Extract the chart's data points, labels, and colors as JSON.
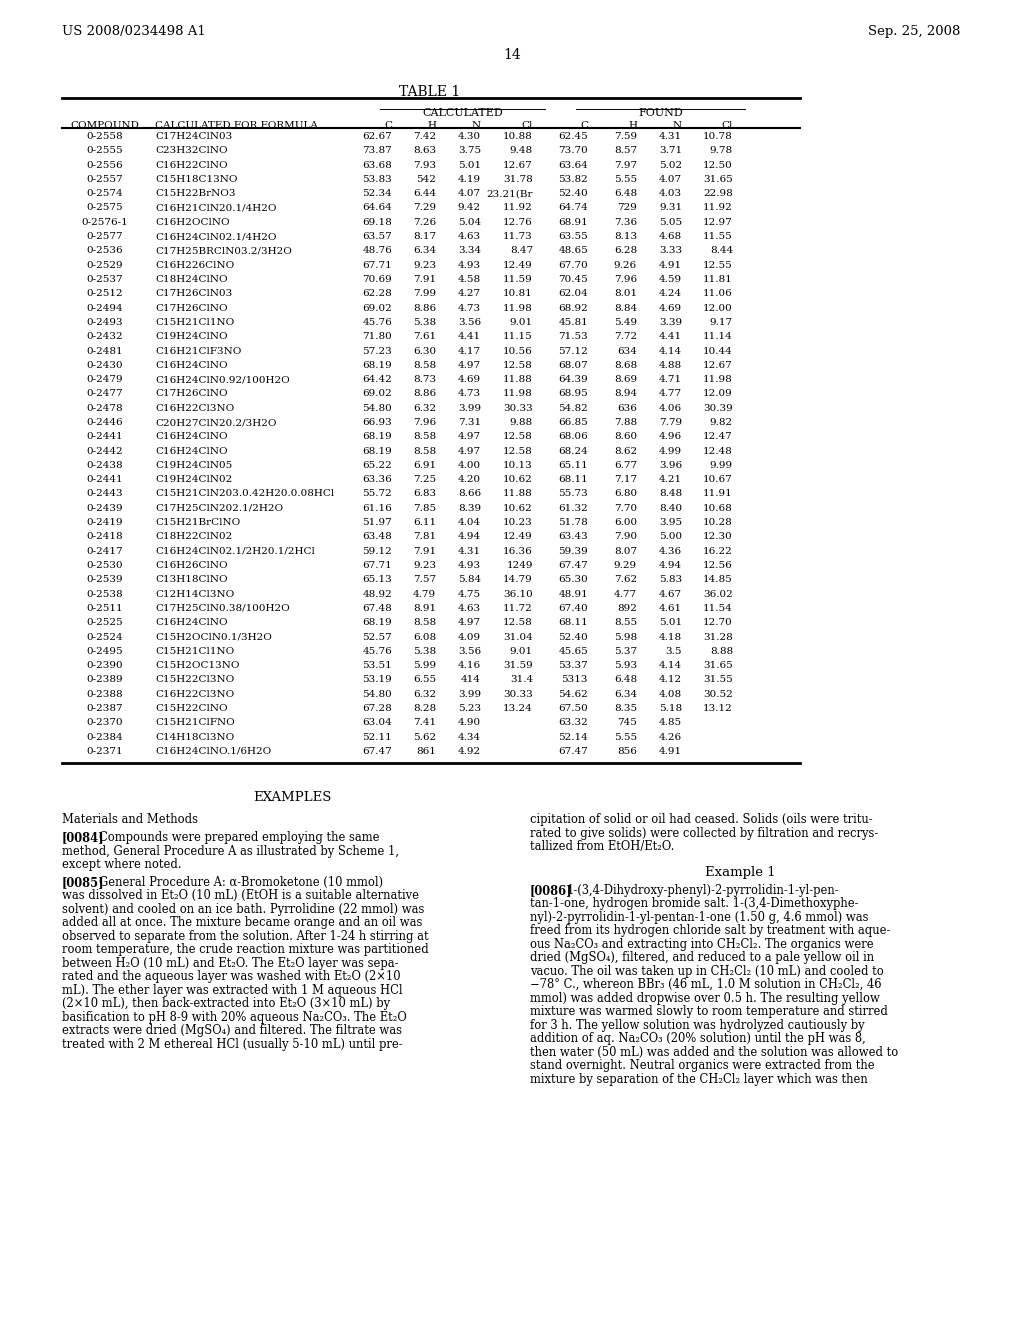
{
  "header_left": "US 2008/0234498 A1",
  "header_right": "Sep. 25, 2008",
  "page_number": "14",
  "table_title": "TABLE 1",
  "calc_header": "CALCULATED",
  "found_header": "FOUND",
  "table_data": [
    [
      "0-2558",
      "C17H24ClN03",
      "62.67",
      "7.42",
      "4.30",
      "10.88",
      "62.45",
      "7.59",
      "4.31",
      "10.78"
    ],
    [
      "0-2555",
      "C23H32ClNO",
      "73.87",
      "8.63",
      "3.75",
      "9.48",
      "73.70",
      "8.57",
      "3.71",
      "9.78"
    ],
    [
      "0-2556",
      "C16H22ClNO",
      "63.68",
      "7.93",
      "5.01",
      "12.67",
      "63.64",
      "7.97",
      "5.02",
      "12.50"
    ],
    [
      "0-2557",
      "C15H18C13NO",
      "53.83",
      "542",
      "4.19",
      "31.78",
      "53.82",
      "5.55",
      "4.07",
      "31.65"
    ],
    [
      "0-2574",
      "C15H22BrNO3",
      "52.34",
      "6.44",
      "4.07",
      "23.21(Br",
      "52.40",
      "6.48",
      "4.03",
      "22.98"
    ],
    [
      "0-2575",
      "C16H21ClN20.1/4H2O",
      "64.64",
      "7.29",
      "9.42",
      "11.92",
      "64.74",
      "729",
      "9.31",
      "11.92"
    ],
    [
      "0-2576-1",
      "C16H2OClNO",
      "69.18",
      "7.26",
      "5.04",
      "12.76",
      "68.91",
      "7.36",
      "5.05",
      "12.97"
    ],
    [
      "0-2577",
      "C16H24ClN02.1/4H2O",
      "63.57",
      "8.17",
      "4.63",
      "11.73",
      "63.55",
      "8.13",
      "4.68",
      "11.55"
    ],
    [
      "0-2536",
      "C17H25BRClN03.2/3H2O",
      "48.76",
      "6.34",
      "3.34",
      "8.47",
      "48.65",
      "6.28",
      "3.33",
      "8.44"
    ],
    [
      "0-2529",
      "C16H226ClNO",
      "67.71",
      "9.23",
      "4.93",
      "12.49",
      "67.70",
      "9.26",
      "4.91",
      "12.55"
    ],
    [
      "0-2537",
      "C18H24ClNO",
      "70.69",
      "7.91",
      "4.58",
      "11.59",
      "70.45",
      "7.96",
      "4.59",
      "11.81"
    ],
    [
      "0-2512",
      "C17H26ClN03",
      "62.28",
      "7.99",
      "4.27",
      "10.81",
      "62.04",
      "8.01",
      "4.24",
      "11.06"
    ],
    [
      "0-2494",
      "C17H26ClNO",
      "69.02",
      "8.86",
      "4.73",
      "11.98",
      "68.92",
      "8.84",
      "4.69",
      "12.00"
    ],
    [
      "0-2493",
      "C15H21Cl1NO",
      "45.76",
      "5.38",
      "3.56",
      "9.01",
      "45.81",
      "5.49",
      "3.39",
      "9.17"
    ],
    [
      "0-2432",
      "C19H24ClNO",
      "71.80",
      "7.61",
      "4.41",
      "11.15",
      "71.53",
      "7.72",
      "4.41",
      "11.14"
    ],
    [
      "0-2481",
      "C16H21ClF3NO",
      "57.23",
      "6.30",
      "4.17",
      "10.56",
      "57.12",
      "634",
      "4.14",
      "10.44"
    ],
    [
      "0-2430",
      "C16H24ClNO",
      "68.19",
      "8.58",
      "4.97",
      "12.58",
      "68.07",
      "8.68",
      "4.88",
      "12.67"
    ],
    [
      "0-2479",
      "C16H24ClN0.92/100H2O",
      "64.42",
      "8.73",
      "4.69",
      "11.88",
      "64.39",
      "8.69",
      "4.71",
      "11.98"
    ],
    [
      "0-2477",
      "C17H26ClNO",
      "69.02",
      "8.86",
      "4.73",
      "11.98",
      "68.95",
      "8.94",
      "4.77",
      "12.09"
    ],
    [
      "0-2478",
      "C16H22Cl3NO",
      "54.80",
      "6.32",
      "3.99",
      "30.33",
      "54.82",
      "636",
      "4.06",
      "30.39"
    ],
    [
      "0-2446",
      "C20H27ClN20.2/3H2O",
      "66.93",
      "7.96",
      "7.31",
      "9.88",
      "66.85",
      "7.88",
      "7.79",
      "9.82"
    ],
    [
      "0-2441",
      "C16H24ClNO",
      "68.19",
      "8.58",
      "4.97",
      "12.58",
      "68.06",
      "8.60",
      "4.96",
      "12.47"
    ],
    [
      "0-2442",
      "C16H24ClNO",
      "68.19",
      "8.58",
      "4.97",
      "12.58",
      "68.24",
      "8.62",
      "4.99",
      "12.48"
    ],
    [
      "0-2438",
      "C19H24ClN05",
      "65.22",
      "6.91",
      "4.00",
      "10.13",
      "65.11",
      "6.77",
      "3.96",
      "9.99"
    ],
    [
      "0-2441",
      "C19H24ClN02",
      "63.36",
      "7.25",
      "4.20",
      "10.62",
      "68.11",
      "7.17",
      "4.21",
      "10.67"
    ],
    [
      "0-2443",
      "C15H21ClN203.0.42H20.0.08HCl",
      "55.72",
      "6.83",
      "8.66",
      "11.88",
      "55.73",
      "6.80",
      "8.48",
      "11.91"
    ],
    [
      "0-2439",
      "C17H25ClN202.1/2H2O",
      "61.16",
      "7.85",
      "8.39",
      "10.62",
      "61.32",
      "7.70",
      "8.40",
      "10.68"
    ],
    [
      "0-2419",
      "C15H21BrClNO",
      "51.97",
      "6.11",
      "4.04",
      "10.23",
      "51.78",
      "6.00",
      "3.95",
      "10.28"
    ],
    [
      "0-2418",
      "C18H22ClN02",
      "63.48",
      "7.81",
      "4.94",
      "12.49",
      "63.43",
      "7.90",
      "5.00",
      "12.30"
    ],
    [
      "0-2417",
      "C16H24ClN02.1/2H20.1/2HCl",
      "59.12",
      "7.91",
      "4.31",
      "16.36",
      "59.39",
      "8.07",
      "4.36",
      "16.22"
    ],
    [
      "0-2530",
      "C16H26ClNO",
      "67.71",
      "9.23",
      "4.93",
      "1249",
      "67.47",
      "9.29",
      "4.94",
      "12.56"
    ],
    [
      "0-2539",
      "C13H18ClNO",
      "65.13",
      "7.57",
      "5.84",
      "14.79",
      "65.30",
      "7.62",
      "5.83",
      "14.85"
    ],
    [
      "0-2538",
      "C12H14Cl3NO",
      "48.92",
      "4.79",
      "4.75",
      "36.10",
      "48.91",
      "4.77",
      "4.67",
      "36.02"
    ],
    [
      "0-2511",
      "C17H25ClN0.38/100H2O",
      "67.48",
      "8.91",
      "4.63",
      "11.72",
      "67.40",
      "892",
      "4.61",
      "11.54"
    ],
    [
      "0-2525",
      "C16H24ClNO",
      "68.19",
      "8.58",
      "4.97",
      "12.58",
      "68.11",
      "8.55",
      "5.01",
      "12.70"
    ],
    [
      "0-2524",
      "C15H2OClN0.1/3H2O",
      "52.57",
      "6.08",
      "4.09",
      "31.04",
      "52.40",
      "5.98",
      "4.18",
      "31.28"
    ],
    [
      "0-2495",
      "C15H21Cl1NO",
      "45.76",
      "5.38",
      "3.56",
      "9.01",
      "45.65",
      "5.37",
      "3.5",
      "8.88"
    ],
    [
      "0-2390",
      "C15H2OC13NO",
      "53.51",
      "5.99",
      "4.16",
      "31.59",
      "53.37",
      "5.93",
      "4.14",
      "31.65"
    ],
    [
      "0-2389",
      "C15H22Cl3NO",
      "53.19",
      "6.55",
      "414",
      "31.4",
      "5313",
      "6.48",
      "4.12",
      "31.55"
    ],
    [
      "0-2388",
      "C16H22Cl3NO",
      "54.80",
      "6.32",
      "3.99",
      "30.33",
      "54.62",
      "6.34",
      "4.08",
      "30.52"
    ],
    [
      "0-2387",
      "C15H22ClNO",
      "67.28",
      "8.28",
      "5.23",
      "13.24",
      "67.50",
      "8.35",
      "5.18",
      "13.12"
    ],
    [
      "0-2370",
      "C15H21ClFNO",
      "63.04",
      "7.41",
      "4.90",
      "",
      "63.32",
      "745",
      "4.85",
      ""
    ],
    [
      "0-2384",
      "C14H18Cl3NO",
      "52.11",
      "5.62",
      "4.34",
      "",
      "52.14",
      "5.55",
      "4.26",
      ""
    ],
    [
      "0-2371",
      "C16H24ClNO.1/6H2O",
      "67.47",
      "861",
      "4.92",
      "",
      "67.47",
      "856",
      "4.91",
      ""
    ]
  ],
  "left_col_paragraphs": [
    {
      "label": "EXAMPLES",
      "style": "center_heading",
      "lines": [
        "EXAMPLES"
      ]
    },
    {
      "label": "Materials",
      "style": "left_heading",
      "lines": [
        "Materials and Methods"
      ]
    },
    {
      "label": "0084",
      "style": "para",
      "bold_tag": "[0084]",
      "lines": [
        "Compounds were prepared employing the same",
        "method, General Procedure A as illustrated by Scheme 1,",
        "except where noted."
      ]
    },
    {
      "label": "0085",
      "style": "para",
      "bold_tag": "[0085]",
      "lines": [
        "General Procedure A: α-Bromoketone (10 mmol)",
        "was dissolved in Et₂O (10 mL) (EtOH is a suitable alternative",
        "solvent) and cooled on an ice bath. Pyrrolidine (22 mmol) was",
        "added all at once. The mixture became orange and an oil was",
        "observed to separate from the solution. After 1-24 h stirring at",
        "room temperature, the crude reaction mixture was partitioned",
        "between H₂O (10 mL) and Et₂O. The Et₂O layer was sepa-",
        "rated and the aqueous layer was washed with Et₂O (2×10",
        "mL). The ether layer was extracted with 1 M aqueous HCl",
        "(2×10 mL), then back-extracted into Et₂O (3×10 mL) by",
        "basification to pH 8-9 with 20% aqueous Na₂CO₃. The Et₂O",
        "extracts were dried (MgSO₄) and filtered. The filtrate was",
        "treated with 2 M ethereal HCl (usually 5-10 mL) until pre-"
      ]
    }
  ],
  "right_col_paragraphs": [
    {
      "label": "cont",
      "style": "continuation",
      "lines": [
        "cipitation of solid or oil had ceased. Solids (oils were tritu-",
        "rated to give solids) were collected by filtration and recrys-",
        "tallized from EtOH/Et₂O."
      ]
    },
    {
      "label": "Example1",
      "style": "center_heading",
      "lines": [
        "Example 1"
      ]
    },
    {
      "label": "0086",
      "style": "para",
      "bold_tag": "[0086]",
      "lines": [
        "1-(3,4-Dihydroxy-phenyl)-2-pyrrolidin-1-yl-pen-",
        "tan-1-one, hydrogen bromide salt. 1-(3,4-Dimethoxyphe-",
        "nyl)-2-pyrrolidin-1-yl-pentan-1-one (1.50 g, 4.6 mmol) was",
        "freed from its hydrogen chloride salt by treatment with aque-",
        "ous Na₂CO₃ and extracting into CH₂Cl₂. The organics were",
        "dried (MgSO₄), filtered, and reduced to a pale yellow oil in",
        "vacuo. The oil was taken up in CH₂Cl₂ (10 mL) and cooled to",
        "−78° C., whereon BBr₃ (46 mL, 1.0 M solution in CH₂Cl₂, 46",
        "mmol) was added dropwise over 0.5 h. The resulting yellow",
        "mixture was warmed slowly to room temperature and stirred",
        "for 3 h. The yellow solution was hydrolyzed cautiously by",
        "addition of aq. Na₂CO₃ (20% solution) until the pH was 8,",
        "then water (50 mL) was added and the solution was allowed to",
        "stand overnight. Neutral organics were extracted from the",
        "mixture by separation of the CH₂Cl₂ layer which was then"
      ]
    }
  ]
}
